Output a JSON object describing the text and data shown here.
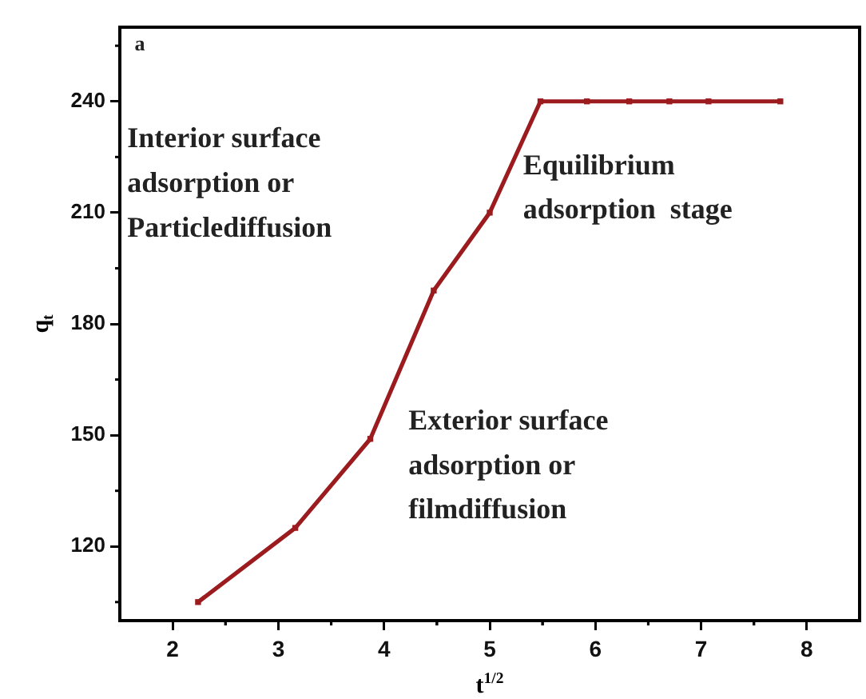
{
  "chart_data": {
    "type": "line",
    "xlabel": "t$^{1/2}$",
    "ylabel": "q$_{t}$",
    "x": [
      2.24,
      3.16,
      3.87,
      4.47,
      5.0,
      5.48,
      5.92,
      6.32,
      6.7,
      7.07,
      7.75
    ],
    "series": [
      {
        "color": "#9b1b1e",
        "values": [
          105,
          125,
          149,
          189,
          210,
          240,
          240,
          240,
          240,
          240,
          240
        ]
      }
    ],
    "xlim": [
      1.5,
      8.5
    ],
    "xticks": [
      2,
      3,
      4,
      5,
      6,
      7,
      8
    ],
    "ylim": [
      100,
      260
    ],
    "yticks": [
      120,
      150,
      180,
      210,
      240
    ],
    "marker": "square",
    "line_style": "solid",
    "grid": false,
    "legend": false,
    "annotations": [
      "a",
      "Interior surface\nadsorption or\nParticlediffusion",
      "Equilibrium\nadsorption  stage",
      "Exterior surface\nadsorption or\nfilmdiffusion"
    ]
  }
}
